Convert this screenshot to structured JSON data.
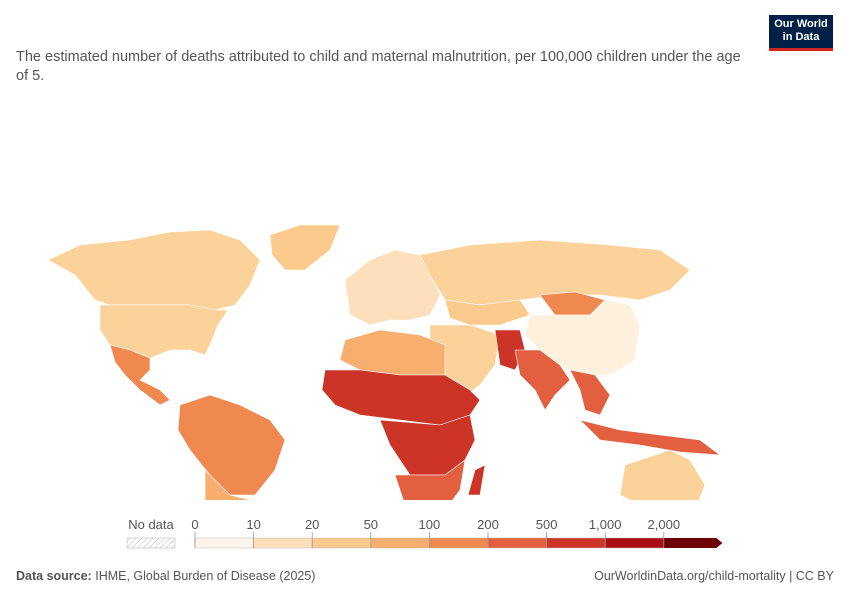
{
  "header": {
    "subtitle": "The estimated number of deaths attributed to child and maternal malnutrition, per 100,000 children under the age of 5.",
    "logo": [
      "Our World",
      "in Data"
    ]
  },
  "legend": {
    "no_data_label": "No data",
    "ticks": [
      "0",
      "10",
      "20",
      "50",
      "100",
      "200",
      "500",
      "1,000",
      "2,000"
    ],
    "colors": [
      "#fdf3ea",
      "#fde0bb",
      "#fcca8c",
      "#f8ae6f",
      "#f08950",
      "#e2603f",
      "#cc3427",
      "#a80e13",
      "#6b0006"
    ]
  },
  "footer": {
    "source_label": "Data source:",
    "source": "IHME, Global Burden of Disease (2025)",
    "link": "OurWorldinData.org/child-mortality | CC BY"
  }
}
